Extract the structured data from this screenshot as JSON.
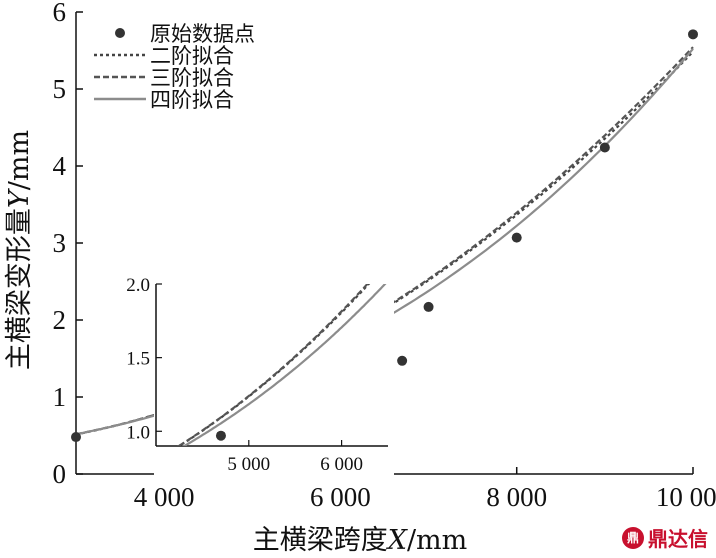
{
  "chart_data": {
    "type": "line",
    "xlabel_prefix": "主横梁跨度",
    "xlabel_var": "X",
    "xlabel_unit": "/mm",
    "ylabel_prefix": "主横梁变形量",
    "ylabel_var": "Y",
    "ylabel_unit": "/mm",
    "xlim": [
      3000,
      10000
    ],
    "ylim": [
      0,
      6
    ],
    "x_ticks": [
      4000,
      6000,
      8000,
      10000
    ],
    "x_tick_labels": [
      "4 000",
      "6 000",
      "8 000",
      "10 000"
    ],
    "y_ticks": [
      0,
      1,
      2,
      3,
      4,
      5,
      6
    ],
    "y_tick_labels": [
      "0",
      "1",
      "2",
      "3",
      "4",
      "5",
      "6"
    ],
    "legend_position": "top-left",
    "points": {
      "name": "原始数据点",
      "color": "#333333",
      "x": [
        3000,
        4700,
        6700,
        7000,
        8000,
        9000,
        10000
      ],
      "y": [
        0.48,
        0.97,
        1.47,
        2.17,
        3.07,
        4.24,
        5.71
      ]
    },
    "series": [
      {
        "name": "二阶拟合",
        "style": "dotted",
        "color": "#444444",
        "coeffs": [
          0.4771,
          -0.000197,
          6.977e-08
        ]
      },
      {
        "name": "三阶拟合",
        "style": "dashed",
        "color": "#555555",
        "coeffs": [
          0.5089,
          -0.0002117,
          7.159e-08,
          -6.7e-15
        ]
      },
      {
        "name": "四阶拟合",
        "style": "solid",
        "color": "#8c8c8c",
        "coeffs": [
          0.1716,
          2.5e-05,
          2.2e-08,
          2.5e-12,
          4e-17
        ]
      }
    ],
    "inset": {
      "xlim": [
        4000,
        6500
      ],
      "ylim": [
        0.9,
        2.0
      ],
      "x_ticks": [
        5000,
        6000
      ],
      "x_tick_labels": [
        "5 000",
        "6 000"
      ],
      "y_ticks": [
        1.0,
        1.5,
        2.0
      ],
      "y_tick_labels": [
        "1.0",
        "1.5",
        "2.0"
      ]
    }
  },
  "watermark": {
    "logo_text": "鼎",
    "text": "鼎达信"
  }
}
